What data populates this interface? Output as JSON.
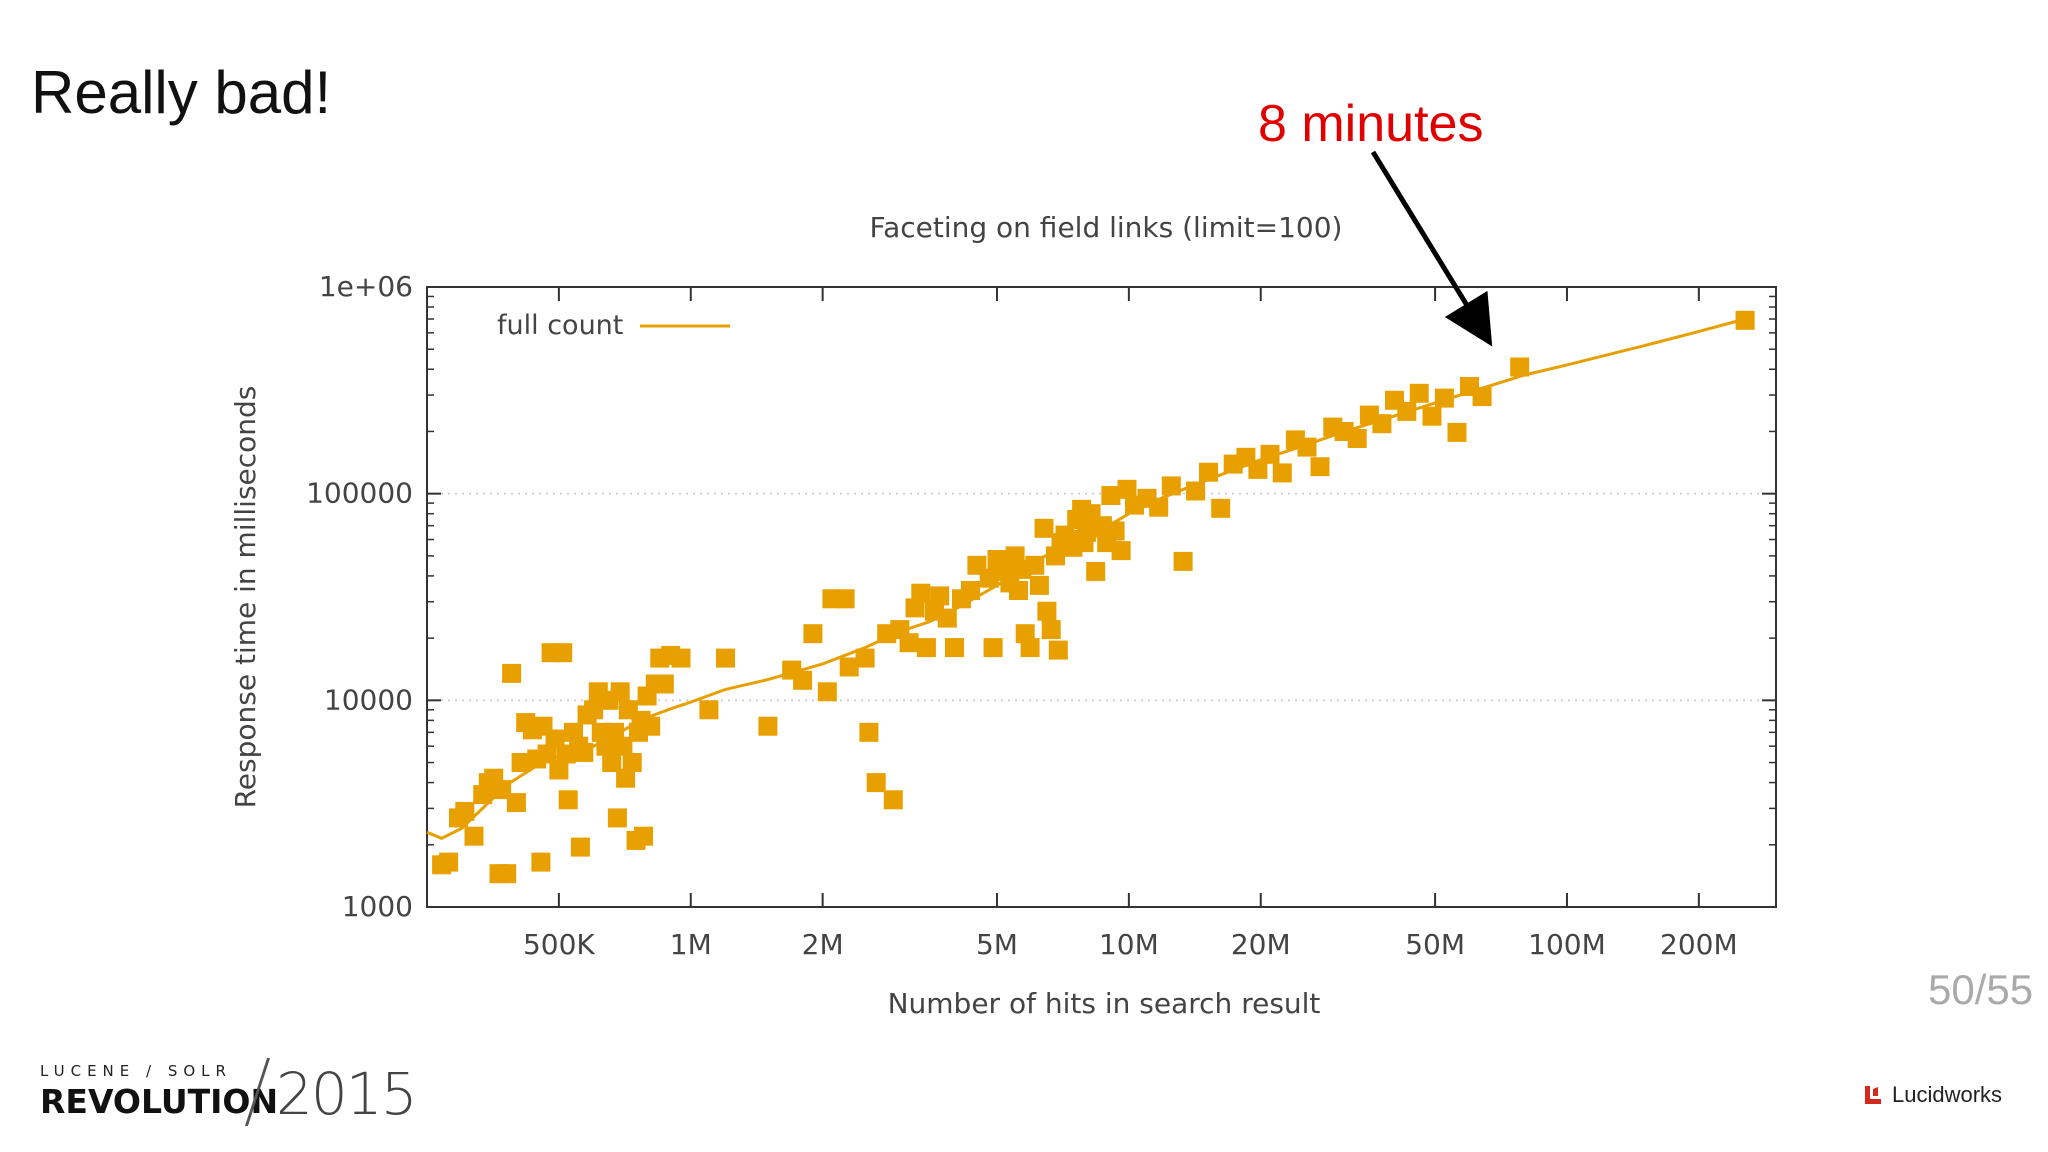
{
  "slide": {
    "title": "Really bad!",
    "callout": "8 minutes",
    "page_number": "50/55",
    "footer_brand_top": "LUCENE / SOLR",
    "footer_brand_main": "REVOLUTION",
    "footer_brand_year": "2015",
    "footer_company": "Lucidworks"
  },
  "colors": {
    "series": "#E8A000",
    "callout": "#E00000",
    "arrow": "#000000",
    "grid": "#c8c8c8"
  },
  "chart_data": {
    "type": "scatter",
    "title": "Faceting on field links (limit=100)",
    "xlabel": "Number of hits in search result",
    "ylabel": "Response time in milliseconds",
    "x_scale": "log",
    "y_scale": "log",
    "xlim": [
      250000,
      300000000
    ],
    "ylim": [
      1000,
      1000000
    ],
    "x_ticks": [
      {
        "value": 500000,
        "label": "500K"
      },
      {
        "value": 1000000,
        "label": "1M"
      },
      {
        "value": 2000000,
        "label": "2M"
      },
      {
        "value": 5000000,
        "label": "5M"
      },
      {
        "value": 10000000,
        "label": "10M"
      },
      {
        "value": 20000000,
        "label": "20M"
      },
      {
        "value": 50000000,
        "label": "50M"
      },
      {
        "value": 100000000,
        "label": "100M"
      },
      {
        "value": 200000000,
        "label": "200M"
      }
    ],
    "y_ticks": [
      {
        "value": 1000,
        "label": "1000"
      },
      {
        "value": 10000,
        "label": "10000"
      },
      {
        "value": 100000,
        "label": "100000"
      },
      {
        "value": 1000000,
        "label": "1e+06"
      }
    ],
    "grid": "horizontal dotted at major y ticks",
    "legend": {
      "position": "top-left",
      "label": "full count"
    },
    "series": [
      {
        "name": "full count",
        "points": [
          [
            270000,
            1600
          ],
          [
            280000,
            1650
          ],
          [
            295000,
            2700
          ],
          [
            305000,
            2900
          ],
          [
            320000,
            2200
          ],
          [
            335000,
            3500
          ],
          [
            345000,
            4000
          ],
          [
            355000,
            4200
          ],
          [
            365000,
            1450
          ],
          [
            380000,
            1450
          ],
          [
            370000,
            3700
          ],
          [
            390000,
            13500
          ],
          [
            400000,
            3200
          ],
          [
            410000,
            5000
          ],
          [
            420000,
            7800
          ],
          [
            435000,
            7200
          ],
          [
            445000,
            5200
          ],
          [
            455000,
            1650
          ],
          [
            460000,
            7500
          ],
          [
            470000,
            5500
          ],
          [
            480000,
            17000
          ],
          [
            490000,
            6500
          ],
          [
            500000,
            4600
          ],
          [
            510000,
            17000
          ],
          [
            520000,
            5500
          ],
          [
            525000,
            3300
          ],
          [
            540000,
            7000
          ],
          [
            555000,
            6000
          ],
          [
            560000,
            1950
          ],
          [
            570000,
            5600
          ],
          [
            580000,
            8500
          ],
          [
            600000,
            9000
          ],
          [
            615000,
            11000
          ],
          [
            625000,
            7000
          ],
          [
            640000,
            6000
          ],
          [
            650000,
            10000
          ],
          [
            660000,
            5000
          ],
          [
            670000,
            7000
          ],
          [
            680000,
            2700
          ],
          [
            690000,
            11000
          ],
          [
            700000,
            6000
          ],
          [
            710000,
            4200
          ],
          [
            720000,
            9000
          ],
          [
            735000,
            5000
          ],
          [
            750000,
            2100
          ],
          [
            760000,
            7000
          ],
          [
            770000,
            8000
          ],
          [
            780000,
            2200
          ],
          [
            795000,
            10500
          ],
          [
            810000,
            7500
          ],
          [
            830000,
            12000
          ],
          [
            850000,
            16000
          ],
          [
            870000,
            12000
          ],
          [
            900000,
            16500
          ],
          [
            950000,
            16000
          ],
          [
            1100000,
            9000
          ],
          [
            1200000,
            16000
          ],
          [
            1500000,
            7500
          ],
          [
            1700000,
            14000
          ],
          [
            1800000,
            12500
          ],
          [
            1900000,
            21000
          ],
          [
            2050000,
            11000
          ],
          [
            2100000,
            31000
          ],
          [
            2250000,
            31000
          ],
          [
            2300000,
            14500
          ],
          [
            2500000,
            16000
          ],
          [
            2550000,
            7000
          ],
          [
            2650000,
            4000
          ],
          [
            2800000,
            21000
          ],
          [
            2900000,
            3300
          ],
          [
            3000000,
            22000
          ],
          [
            3150000,
            19000
          ],
          [
            3250000,
            28000
          ],
          [
            3350000,
            33000
          ],
          [
            3450000,
            18000
          ],
          [
            3600000,
            27000
          ],
          [
            3700000,
            32000
          ],
          [
            3850000,
            25000
          ],
          [
            4000000,
            18000
          ],
          [
            4150000,
            31000
          ],
          [
            4350000,
            34000
          ],
          [
            4500000,
            45000
          ],
          [
            4800000,
            39000
          ],
          [
            4900000,
            18000
          ],
          [
            5000000,
            48000
          ],
          [
            5200000,
            42000
          ],
          [
            5350000,
            37000
          ],
          [
            5500000,
            50000
          ],
          [
            5600000,
            34000
          ],
          [
            5700000,
            43000
          ],
          [
            5800000,
            21000
          ],
          [
            5950000,
            18000
          ],
          [
            6100000,
            45000
          ],
          [
            6250000,
            36000
          ],
          [
            6400000,
            68000
          ],
          [
            6500000,
            27000
          ],
          [
            6650000,
            22000
          ],
          [
            6800000,
            50000
          ],
          [
            6900000,
            17500
          ],
          [
            7000000,
            58000
          ],
          [
            7150000,
            63000
          ],
          [
            7300000,
            60000
          ],
          [
            7450000,
            55000
          ],
          [
            7600000,
            75000
          ],
          [
            7800000,
            84000
          ],
          [
            7900000,
            58000
          ],
          [
            8000000,
            65000
          ],
          [
            8200000,
            80000
          ],
          [
            8400000,
            42000
          ],
          [
            8550000,
            68000
          ],
          [
            8700000,
            70000
          ],
          [
            8900000,
            58000
          ],
          [
            9100000,
            98000
          ],
          [
            9300000,
            66000
          ],
          [
            9600000,
            53000
          ],
          [
            9900000,
            105000
          ],
          [
            10300000,
            88000
          ],
          [
            11000000,
            95000
          ],
          [
            11700000,
            86000
          ],
          [
            12500000,
            109000
          ],
          [
            13300000,
            47000
          ],
          [
            14200000,
            103000
          ],
          [
            15200000,
            127000
          ],
          [
            16200000,
            85000
          ],
          [
            17300000,
            139000
          ],
          [
            18500000,
            150000
          ],
          [
            19700000,
            131000
          ],
          [
            21000000,
            155000
          ],
          [
            22400000,
            126000
          ],
          [
            24000000,
            182000
          ],
          [
            25500000,
            168000
          ],
          [
            27300000,
            135000
          ],
          [
            29200000,
            210000
          ],
          [
            31000000,
            200000
          ],
          [
            33200000,
            185000
          ],
          [
            35400000,
            240000
          ],
          [
            37800000,
            218000
          ],
          [
            40400000,
            283000
          ],
          [
            43100000,
            250000
          ],
          [
            46000000,
            306000
          ],
          [
            49200000,
            237000
          ],
          [
            52500000,
            290000
          ],
          [
            56100000,
            198000
          ],
          [
            59900000,
            330000
          ],
          [
            64000000,
            295000
          ],
          [
            78000000,
            410000
          ],
          [
            255000000,
            690000
          ]
        ]
      }
    ],
    "trend_line": [
      [
        250000,
        2300
      ],
      [
        270000,
        2150
      ],
      [
        300000,
        2400
      ],
      [
        340000,
        3100
      ],
      [
        380000,
        3900
      ],
      [
        430000,
        4600
      ],
      [
        470000,
        5200
      ],
      [
        520000,
        5400
      ],
      [
        580000,
        5800
      ],
      [
        650000,
        6500
      ],
      [
        720000,
        7400
      ],
      [
        800000,
        8300
      ],
      [
        900000,
        9100
      ],
      [
        1000000,
        9800
      ],
      [
        1200000,
        11300
      ],
      [
        1500000,
        12600
      ],
      [
        2000000,
        15000
      ],
      [
        2500000,
        18000
      ],
      [
        3000000,
        21500
      ],
      [
        3500000,
        24000
      ],
      [
        4000000,
        27500
      ],
      [
        5000000,
        36000
      ],
      [
        6000000,
        46000
      ],
      [
        7000000,
        55000
      ],
      [
        8000000,
        63000
      ],
      [
        9000000,
        70000
      ],
      [
        10000000,
        80000
      ],
      [
        12000000,
        96000
      ],
      [
        15000000,
        116000
      ],
      [
        20000000,
        146000
      ],
      [
        25000000,
        170000
      ],
      [
        30000000,
        195000
      ],
      [
        40000000,
        236000
      ],
      [
        50000000,
        275000
      ],
      [
        60000000,
        310000
      ],
      [
        80000000,
        375000
      ],
      [
        100000000,
        420000
      ],
      [
        150000000,
        520000
      ],
      [
        200000000,
        610000
      ],
      [
        255000000,
        700000
      ]
    ]
  }
}
